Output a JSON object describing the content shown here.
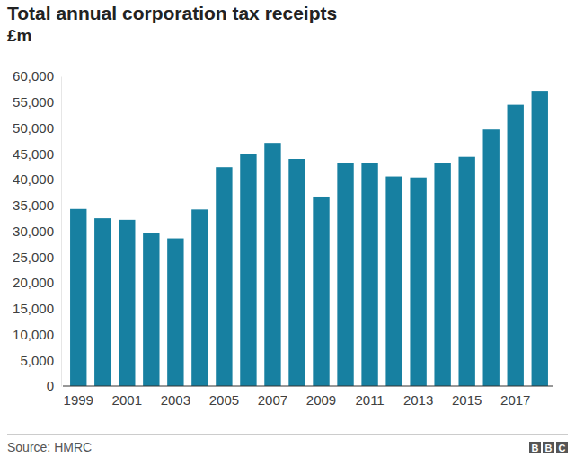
{
  "chart_data": {
    "type": "bar",
    "title": "Total annual corporation tax receipts",
    "subtitle": "£m",
    "source": "Source: HMRC",
    "logo": "BBC",
    "categories": [
      "1999",
      null,
      "2001",
      null,
      "2003",
      null,
      "2005",
      null,
      "2007",
      null,
      "2009",
      null,
      "2011",
      null,
      "2013",
      null,
      "2015",
      null,
      "2017",
      null
    ],
    "values": [
      34300,
      32500,
      32200,
      29700,
      28600,
      34200,
      42400,
      45000,
      47100,
      44000,
      36700,
      43200,
      43200,
      40600,
      40400,
      43200,
      44400,
      49700,
      54500,
      57200
    ],
    "color": "#1780a1",
    "ylim": [
      0,
      60000
    ],
    "yticks": [
      0,
      {
        "value": 5000,
        "label": "5,000"
      },
      {
        "value": 10000,
        "label": "10,000"
      },
      {
        "value": 15000,
        "label": "15,000"
      },
      {
        "value": 20000,
        "label": "20,000"
      },
      {
        "value": 25000,
        "label": "25,000"
      },
      {
        "value": 30000,
        "label": "30,000"
      },
      {
        "value": 35000,
        "label": "35,000"
      },
      {
        "value": 40000,
        "label": "40,000"
      },
      {
        "value": 45000,
        "label": "45,000"
      },
      {
        "value": 50000,
        "label": "50,000"
      },
      {
        "value": 55000,
        "label": "55,000"
      },
      {
        "value": 60000,
        "label": "60,000"
      }
    ],
    "grid": false
  }
}
